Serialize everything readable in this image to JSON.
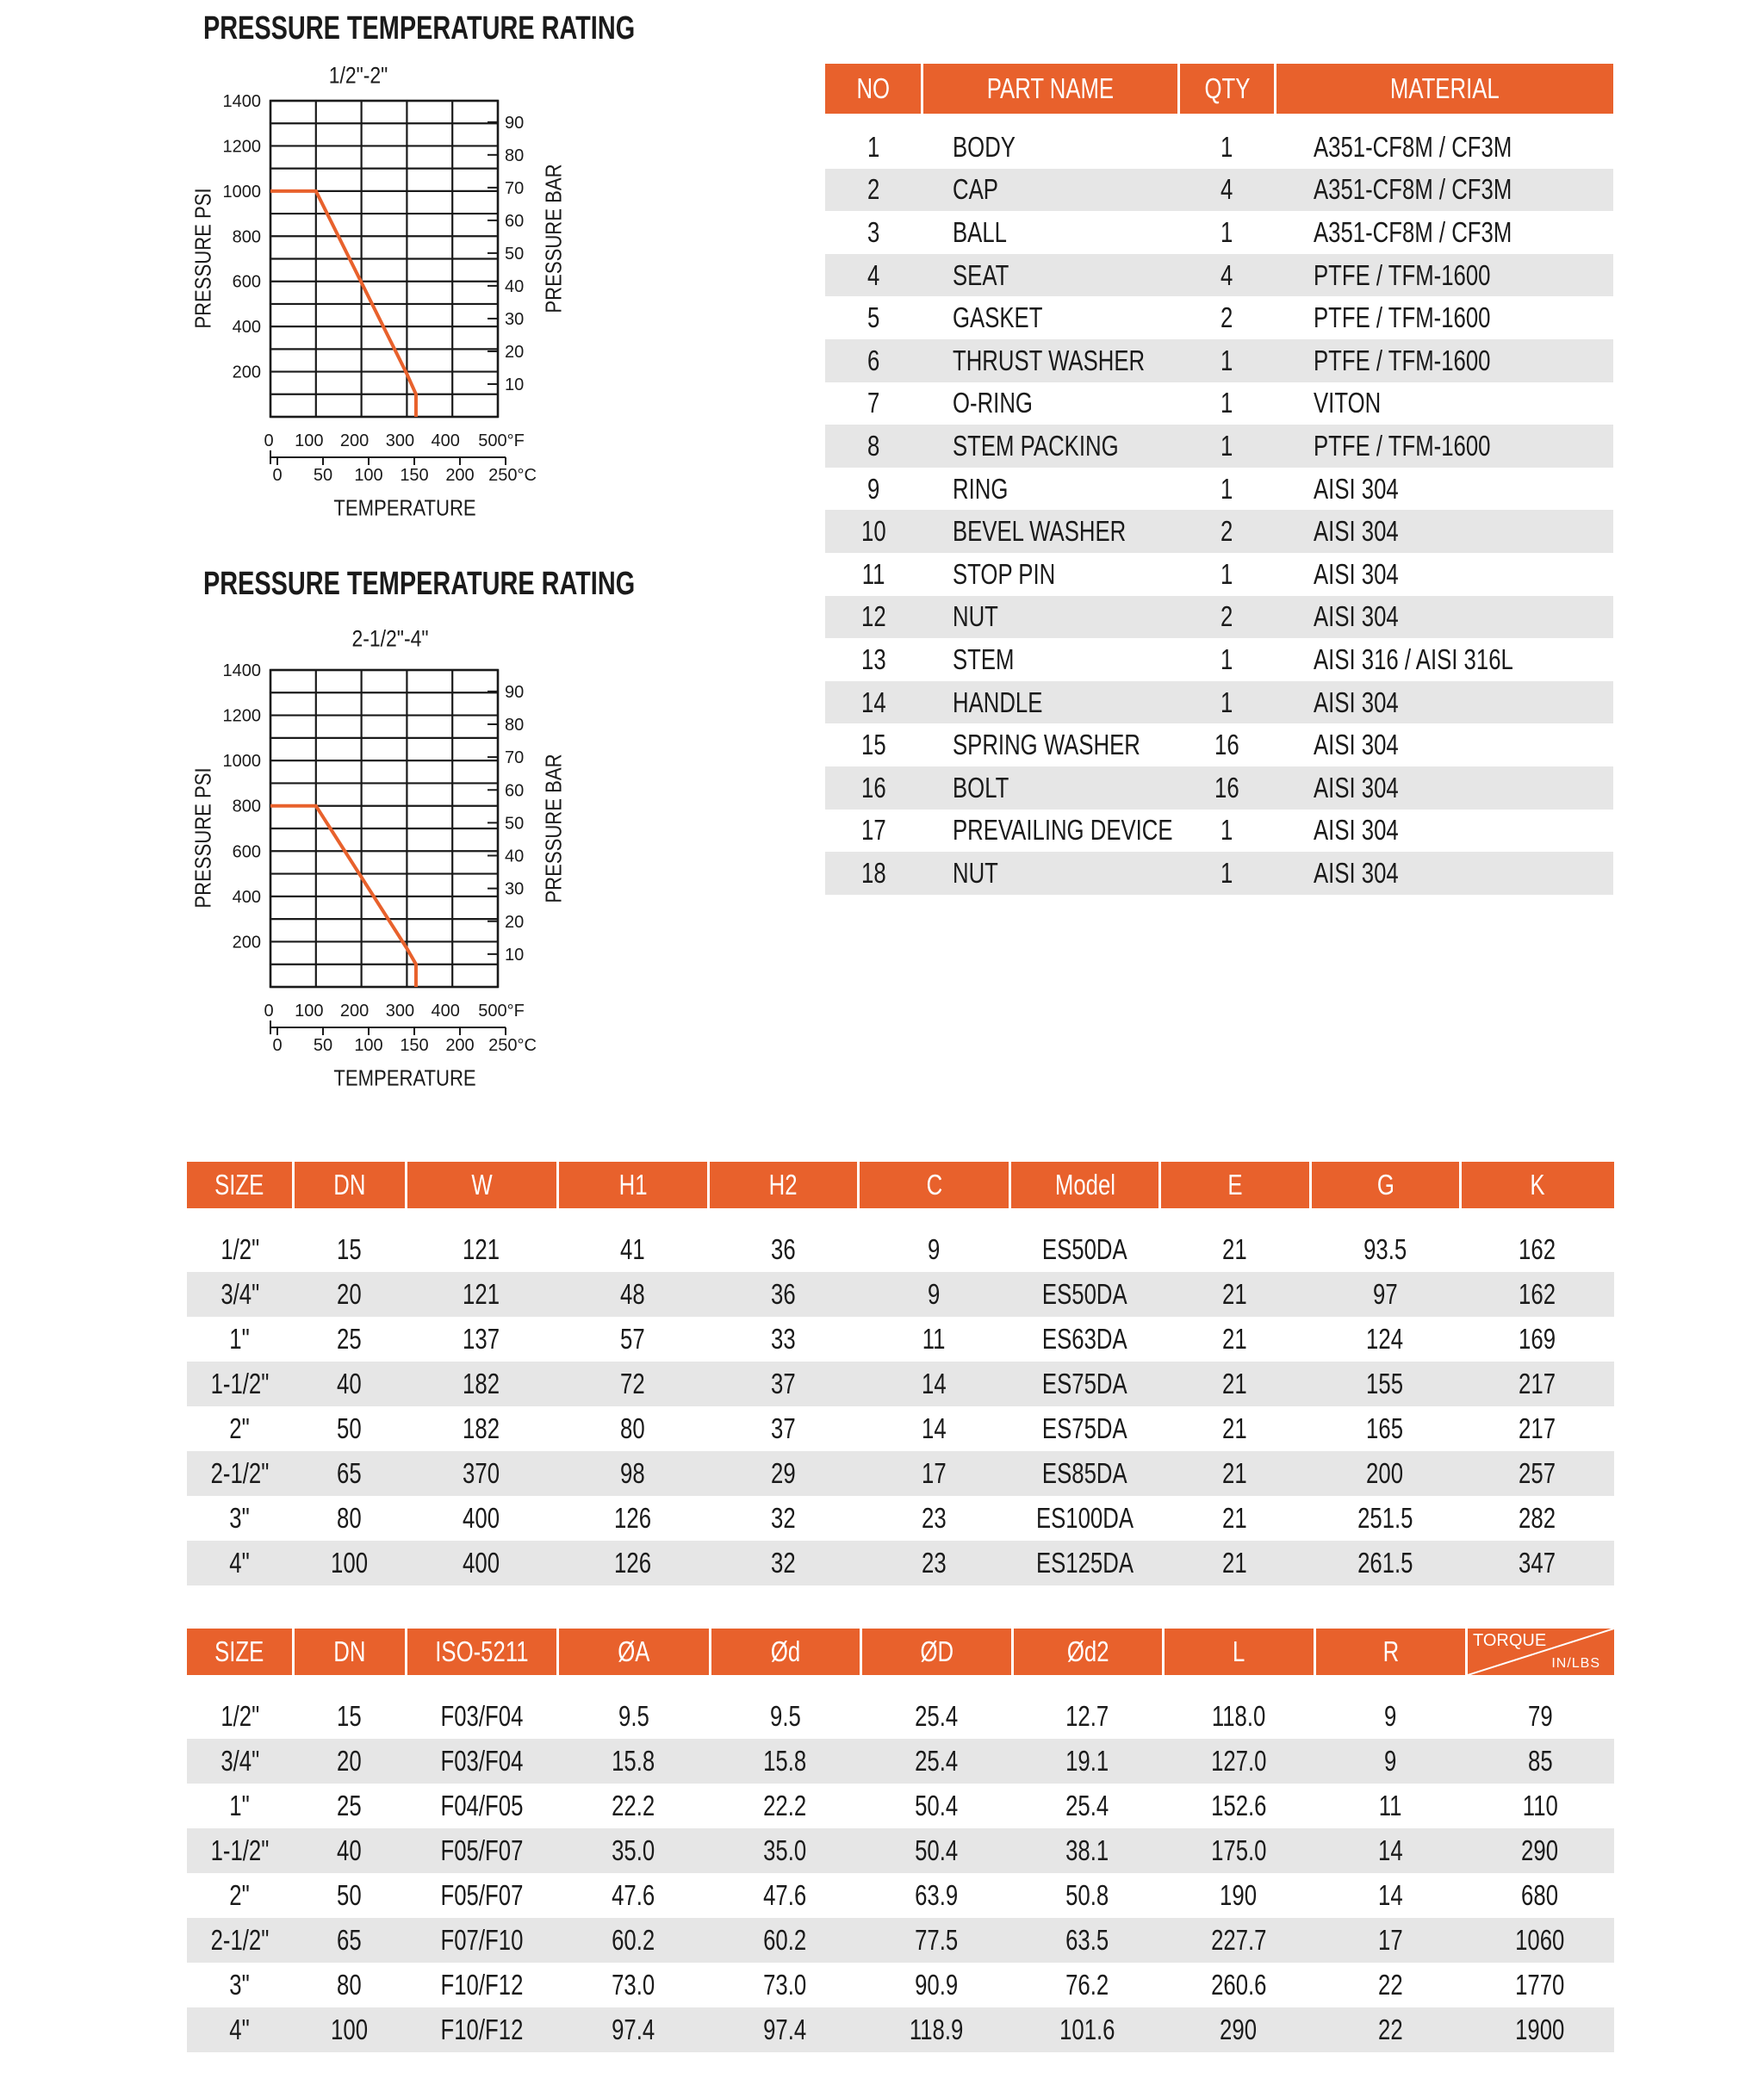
{
  "chart_data": [
    {
      "type": "line",
      "title": "PRESSURE  TEMPERATURE RATING",
      "subtitle": "1/2\"-2\"",
      "ylabel": "PRESSURE PSI",
      "y2label": "PRESSURE BAR",
      "xlabel": "TEMPERATURE",
      "xlim": [
        0,
        500
      ],
      "ylim": [
        0,
        1400
      ],
      "grid": true,
      "x_ticks_f": [
        "0",
        "100",
        "200",
        "300",
        "400",
        "500°F"
      ],
      "x_ticks_c": [
        "0",
        "50",
        "100",
        "150",
        "200",
        "250°C"
      ],
      "y_ticks": [
        "200",
        "400",
        "600",
        "800",
        "1000",
        "1200",
        "1400"
      ],
      "y2_ticks": [
        "10",
        "20",
        "30",
        "40",
        "50",
        "60",
        "70",
        "80",
        "90"
      ],
      "series": [
        {
          "x": [
            0,
            100,
            300,
            320,
            320
          ],
          "y": [
            1000,
            1000,
            190,
            100,
            0
          ],
          "color": "#E8612C"
        }
      ]
    },
    {
      "type": "line",
      "title": "PRESSURE  TEMPERATURE RATING",
      "subtitle": "2-1/2\"-4\"",
      "ylabel": "PRESSURE PSI",
      "y2label": "PRESSURE BAR",
      "xlabel": "TEMPERATURE",
      "xlim": [
        0,
        500
      ],
      "ylim": [
        0,
        1400
      ],
      "grid": true,
      "x_ticks_f": [
        "0",
        "100",
        "200",
        "300",
        "400",
        "500°F"
      ],
      "x_ticks_c": [
        "0",
        "50",
        "100",
        "150",
        "200",
        "250°C"
      ],
      "y_ticks": [
        "200",
        "400",
        "600",
        "800",
        "1000",
        "1200",
        "1400"
      ],
      "y2_ticks": [
        "10",
        "20",
        "30",
        "40",
        "50",
        "60",
        "70",
        "80",
        "90"
      ],
      "series": [
        {
          "x": [
            0,
            100,
            300,
            320,
            320
          ],
          "y": [
            800,
            800,
            170,
            100,
            0
          ],
          "color": "#E8612C"
        }
      ]
    }
  ],
  "colors": {
    "accent": "#E8612C",
    "stripe": "#e6e6e6"
  },
  "parts_table": {
    "headers": [
      "NO",
      "PART NAME",
      "QTY",
      "MATERIAL"
    ],
    "rows": [
      [
        "1",
        "BODY",
        "1",
        "A351-CF8M / CF3M"
      ],
      [
        "2",
        "CAP",
        "4",
        "A351-CF8M / CF3M"
      ],
      [
        "3",
        "BALL",
        "1",
        "A351-CF8M / CF3M"
      ],
      [
        "4",
        "SEAT",
        "4",
        "PTFE / TFM-1600"
      ],
      [
        "5",
        "GASKET",
        "2",
        "PTFE / TFM-1600"
      ],
      [
        "6",
        "THRUST WASHER",
        "1",
        "PTFE / TFM-1600"
      ],
      [
        "7",
        "O-RING",
        "1",
        "VITON"
      ],
      [
        "8",
        "STEM PACKING",
        "1",
        "PTFE / TFM-1600"
      ],
      [
        "9",
        "RING",
        "1",
        "AISI 304"
      ],
      [
        "10",
        "BEVEL WASHER",
        "2",
        "AISI 304"
      ],
      [
        "11",
        "STOP PIN",
        "1",
        "AISI 304"
      ],
      [
        "12",
        "NUT",
        "2",
        "AISI 304"
      ],
      [
        "13",
        "STEM",
        "1",
        "AISI 316 / AISI 316L"
      ],
      [
        "14",
        "HANDLE",
        "1",
        "AISI 304"
      ],
      [
        "15",
        "SPRING WASHER",
        "16",
        "AISI 304"
      ],
      [
        "16",
        "BOLT",
        "16",
        "AISI 304"
      ],
      [
        "17",
        "PREVAILING DEVICE",
        "1",
        "AISI 304"
      ],
      [
        "18",
        "NUT",
        "1",
        "AISI 304"
      ]
    ]
  },
  "dimension_table": {
    "headers": [
      "SIZE",
      "DN",
      "W",
      "H1",
      "H2",
      "C",
      "Model",
      "E",
      "G",
      "K"
    ],
    "rows": [
      [
        "1/2\"",
        "15",
        "121",
        "41",
        "36",
        "9",
        "ES50DA",
        "21",
        "93.5",
        "162"
      ],
      [
        "3/4\"",
        "20",
        "121",
        "48",
        "36",
        "9",
        "ES50DA",
        "21",
        "97",
        "162"
      ],
      [
        "1\"",
        "25",
        "137",
        "57",
        "33",
        "11",
        "ES63DA",
        "21",
        "124",
        "169"
      ],
      [
        "1-1/2\"",
        "40",
        "182",
        "72",
        "37",
        "14",
        "ES75DA",
        "21",
        "155",
        "217"
      ],
      [
        "2\"",
        "50",
        "182",
        "80",
        "37",
        "14",
        "ES75DA",
        "21",
        "165",
        "217"
      ],
      [
        "2-1/2\"",
        "65",
        "370",
        "98",
        "29",
        "17",
        "ES85DA",
        "21",
        "200",
        "257"
      ],
      [
        "3\"",
        "80",
        "400",
        "126",
        "32",
        "23",
        "ES100DA",
        "21",
        "251.5",
        "282"
      ],
      [
        "4\"",
        "100",
        "400",
        "126",
        "32",
        "23",
        "ES125DA",
        "21",
        "261.5",
        "347"
      ]
    ]
  },
  "mounting_table": {
    "headers": [
      "SIZE",
      "DN",
      "ISO-5211",
      "ØA",
      "Ød",
      "ØD",
      "Ød2",
      "L",
      "R"
    ],
    "torque_header": {
      "top": "TORQUE",
      "bottom": "IN/LBS"
    },
    "rows": [
      [
        "1/2\"",
        "15",
        "F03/F04",
        "9.5",
        "9.5",
        "25.4",
        "12.7",
        "118.0",
        "9",
        "79"
      ],
      [
        "3/4\"",
        "20",
        "F03/F04",
        "15.8",
        "15.8",
        "25.4",
        "19.1",
        "127.0",
        "9",
        "85"
      ],
      [
        "1\"",
        "25",
        "F04/F05",
        "22.2",
        "22.2",
        "50.4",
        "25.4",
        "152.6",
        "11",
        "110"
      ],
      [
        "1-1/2\"",
        "40",
        "F05/F07",
        "35.0",
        "35.0",
        "50.4",
        "38.1",
        "175.0",
        "14",
        "290"
      ],
      [
        "2\"",
        "50",
        "F05/F07",
        "47.6",
        "47.6",
        "63.9",
        "50.8",
        "190",
        "14",
        "680"
      ],
      [
        "2-1/2\"",
        "65",
        "F07/F10",
        "60.2",
        "60.2",
        "77.5",
        "63.5",
        "227.7",
        "17",
        "1060"
      ],
      [
        "3\"",
        "80",
        "F10/F12",
        "73.0",
        "73.0",
        "90.9",
        "76.2",
        "260.6",
        "22",
        "1770"
      ],
      [
        "4\"",
        "100",
        "F10/F12",
        "97.4",
        "97.4",
        "118.9",
        "101.6",
        "290",
        "22",
        "1900"
      ]
    ]
  }
}
